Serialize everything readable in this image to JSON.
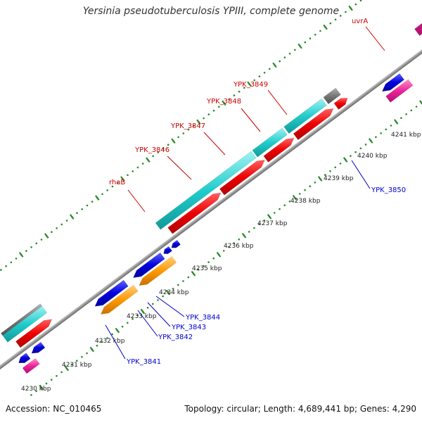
{
  "title": "Yersinia pseudotuberculosis YPIII, complete genome",
  "footer": {
    "accession": "Accession: NC_010465",
    "summary": "Topology: circular; Length: 4,689,441 bp; Genes: 4,290"
  },
  "colors": {
    "backbone": "#8a8a8a",
    "tick_dot": "#2a8a2a",
    "label_forward": "#cc0000",
    "label_reverse": "#0000cc",
    "cds_red": "#ee0000",
    "cds_cyan": "#22cccc",
    "cds_magenta": "#ee2299",
    "cds_blue": "#0000dd",
    "cds_orange": "#ff9900",
    "cds_gray": "#777777"
  },
  "kbp_labels": [
    "4230 kbp",
    "4231 kbp",
    "4232 kbp",
    "4233 kbp",
    "4234 kbp",
    "4235 kbp",
    "4236 kbp",
    "4237 kbp",
    "4238 kbp",
    "4239 kbp",
    "4240 kbp",
    "4241 kbp"
  ],
  "forward_labels": [
    "rhaB",
    "YPK_3846",
    "YPK_3847",
    "YPK_3848",
    "YPK_3849",
    "uvrA"
  ],
  "reverse_labels": [
    "YPK_3841",
    "YPK_3842",
    "YPK_3843",
    "YPK_3844",
    "YPK_3850"
  ]
}
